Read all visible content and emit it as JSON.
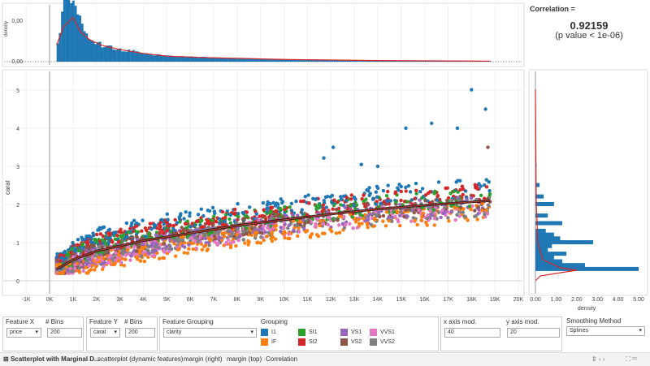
{
  "chart_data": {
    "type": "scatter",
    "xlabel": "",
    "ylabel": "carat",
    "x_ticks": [
      "-1K",
      "0K",
      "1K",
      "2K",
      "3K",
      "4K",
      "5K",
      "6K",
      "7K",
      "8K",
      "9K",
      "10K",
      "11K",
      "12K",
      "13K",
      "14K",
      "15K",
      "16K",
      "17K",
      "18K",
      "19K",
      "20K"
    ],
    "y_ticks": [
      "0",
      "1",
      "2",
      "3",
      "4",
      "5"
    ],
    "xlim": [
      -1000,
      20000
    ],
    "ylim": [
      -0.4,
      5.5
    ],
    "groups": [
      "I1",
      "IF",
      "SI1",
      "SI2",
      "VS1",
      "VS2",
      "VVS1",
      "VVS2"
    ],
    "group_colors": {
      "I1": "#1f77b4",
      "IF": "#ff7f0e",
      "SI1": "#2ca02c",
      "SI2": "#d62728",
      "VS1": "#9467bd",
      "VS2": "#8c564b",
      "VVS1": "#e377c2",
      "VVS2": "#7f7f7f"
    },
    "trend": {
      "method": "Splines",
      "x": [
        300,
        1000,
        2000,
        4000,
        6000,
        8000,
        10000,
        12000,
        14000,
        16000,
        18800
      ],
      "y": [
        0.3,
        0.55,
        0.78,
        1.05,
        1.25,
        1.45,
        1.6,
        1.75,
        1.88,
        1.98,
        2.1
      ]
    },
    "outliers": [
      [
        18000,
        5.01
      ],
      [
        18600,
        4.5
      ],
      [
        18700,
        3.5
      ],
      [
        16300,
        4.13
      ],
      [
        17400,
        4.0
      ],
      [
        15200,
        4.0
      ],
      [
        12100,
        3.5
      ],
      [
        11700,
        3.22
      ],
      [
        13300,
        3.05
      ],
      [
        14000,
        3.0
      ]
    ],
    "top_margin": {
      "ylabel": "density",
      "y_ticks": [
        "0,00",
        "0,00"
      ],
      "x": [
        300,
        600,
        800,
        1000,
        1300,
        1700,
        2200,
        3000,
        4000,
        5000,
        7000,
        10000,
        14000,
        18800
      ],
      "density": [
        0.3,
        0.85,
        1.0,
        0.8,
        0.55,
        0.4,
        0.3,
        0.22,
        0.15,
        0.1,
        0.07,
        0.04,
        0.02,
        0.01
      ]
    },
    "right_margin": {
      "xlabel": "density",
      "x_ticks": [
        "0.00",
        "1.00",
        "2.00",
        "3.00",
        "4.00",
        "5.00"
      ],
      "carat": [
        0.3,
        0.4,
        0.5,
        0.6,
        0.7,
        0.8,
        0.9,
        1.0,
        1.1,
        1.2,
        1.3,
        1.5,
        1.7,
        2.0,
        2.2,
        2.5,
        3.0
      ],
      "density": [
        5.0,
        2.4,
        1.3,
        0.9,
        1.5,
        0.6,
        0.8,
        2.8,
        1.2,
        0.9,
        0.5,
        1.3,
        0.6,
        0.9,
        0.4,
        0.2,
        0.05
      ]
    }
  },
  "correlation": {
    "title": "Correlation =",
    "value": "0.92159",
    "p": "(p value < 1e-06)"
  },
  "controls": {
    "feature_x_label": "Feature X",
    "feature_x": "price",
    "bins_label": "# Bins",
    "bins_x": "200",
    "feature_y_label": "Feature Y",
    "feature_y": "carat",
    "bins_y": "200",
    "grouping_label": "Feature Grouping",
    "grouping": "clarity",
    "legend_title": "Grouping",
    "x_mod_label": "x axis mod.",
    "x_mod": "40",
    "y_mod_label": "y axis mod.",
    "y_mod": "20",
    "smoothing_label": "Smoothing Method",
    "smoothing": "Splines"
  },
  "tabs": [
    "Scatterplot with Marginal D...",
    "scatterplot (dynamic features)",
    "margin (right)",
    "margin (top)",
    "Correlation"
  ]
}
